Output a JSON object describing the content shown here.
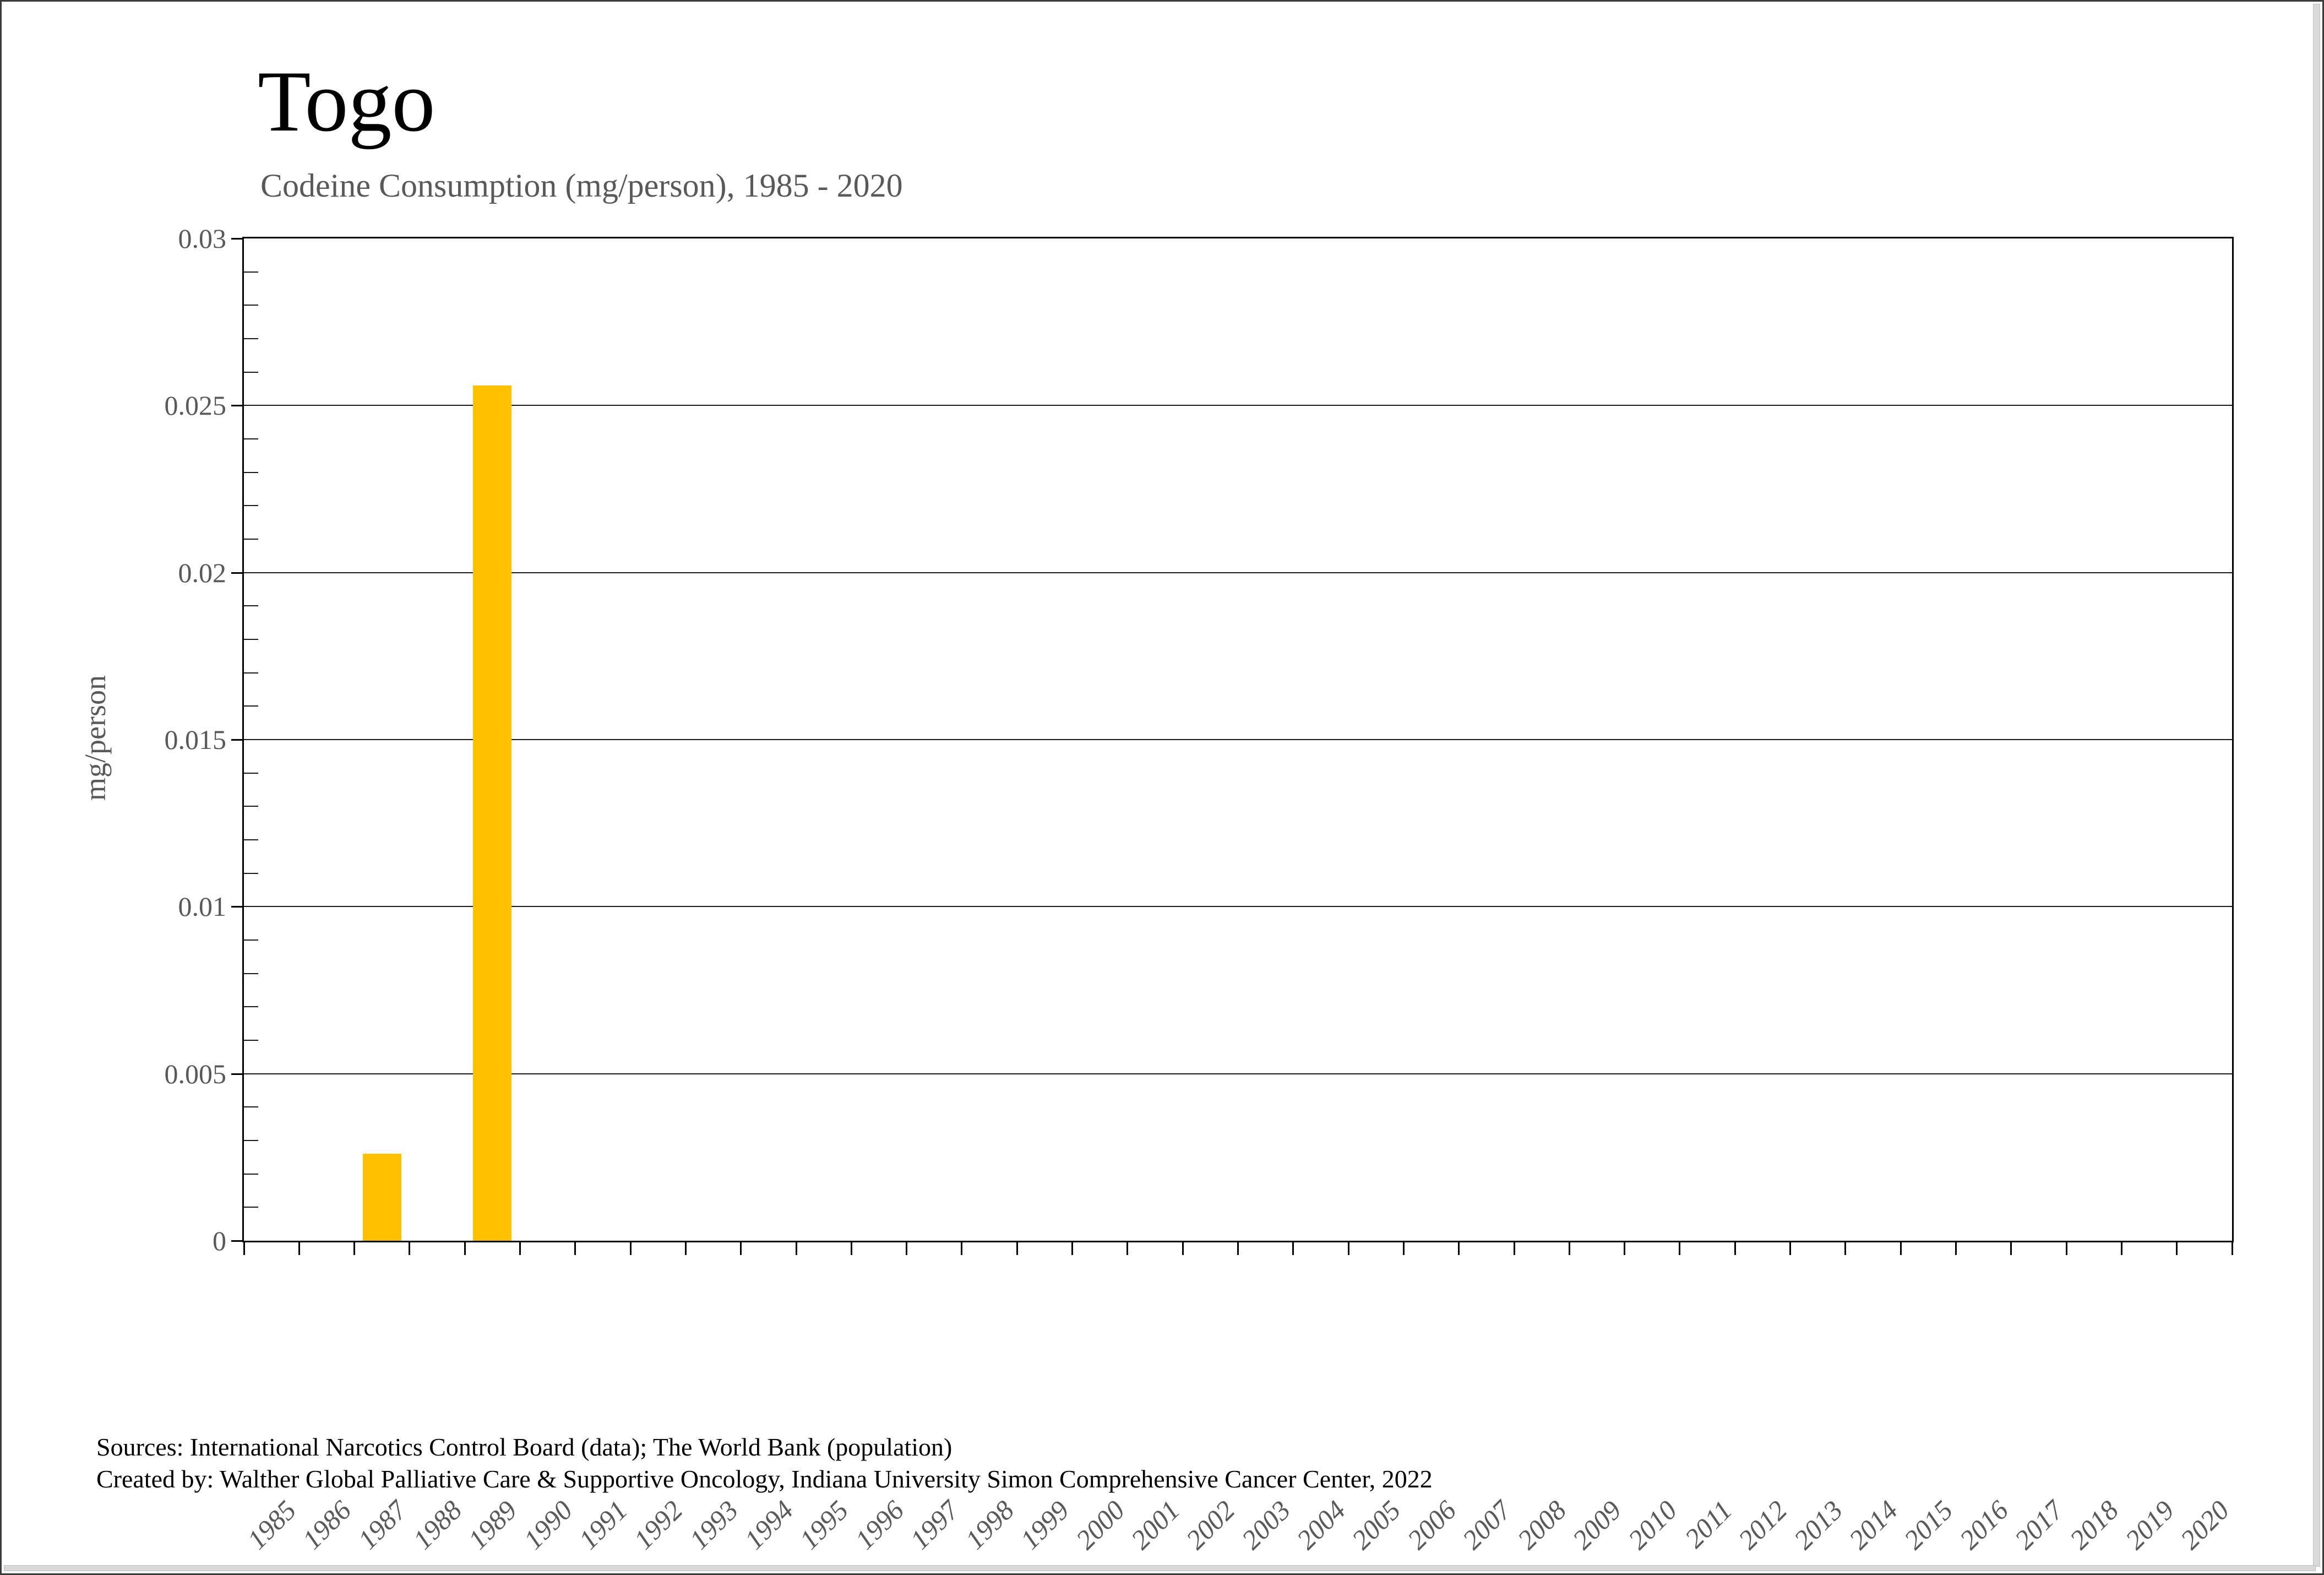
{
  "header": {
    "title": "Togo",
    "subtitle": "Codeine Consumption (mg/person), 1985 - 2020"
  },
  "chart_data": {
    "type": "bar",
    "title": "Togo",
    "subtitle": "Codeine Consumption (mg/person), 1985 - 2020",
    "xlabel": "",
    "ylabel": "mg/person",
    "ylim": [
      0,
      0.03
    ],
    "grid": true,
    "bar_color": "#FFC000",
    "categories": [
      "1985",
      "1986",
      "1987",
      "1988",
      "1989",
      "1990",
      "1991",
      "1992",
      "1993",
      "1994",
      "1995",
      "1996",
      "1997",
      "1998",
      "1999",
      "2000",
      "2001",
      "2002",
      "2003",
      "2004",
      "2005",
      "2006",
      "2007",
      "2008",
      "2009",
      "2010",
      "2011",
      "2012",
      "2013",
      "2014",
      "2015",
      "2016",
      "2017",
      "2018",
      "2019",
      "2020"
    ],
    "values": [
      0,
      0,
      0.0026,
      0,
      0.0256,
      0,
      0,
      0,
      0,
      0,
      0,
      0,
      0,
      0,
      0,
      0,
      0,
      0,
      0,
      0,
      0,
      0,
      0,
      0,
      0,
      0,
      0,
      0,
      0,
      0,
      0,
      0,
      0,
      0,
      0,
      0
    ],
    "yticks": [
      {
        "value": 0,
        "label": "0"
      },
      {
        "value": 0.005,
        "label": "0.005"
      },
      {
        "value": 0.01,
        "label": "0.01"
      },
      {
        "value": 0.015,
        "label": "0.015"
      },
      {
        "value": 0.02,
        "label": "0.02"
      },
      {
        "value": 0.025,
        "label": "0.025"
      },
      {
        "value": 0.03,
        "label": "0.03"
      }
    ],
    "minor_tick_step": 0.001
  },
  "footer": {
    "sources_line": "Sources: International Narcotics Control Board (data); The World Bank (population)",
    "created_by_line": "Created by: Walther Global Palliative Care & Supportive Oncology, Indiana University Simon Comprehensive Cancer Center, 2022"
  }
}
